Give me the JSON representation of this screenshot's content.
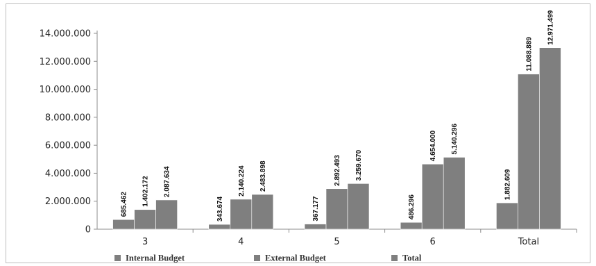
{
  "chart_data": {
    "type": "bar",
    "categories": [
      "3",
      "4",
      "5",
      "6",
      "Total"
    ],
    "series": [
      {
        "name": "Internal Budget",
        "values": [
          685462,
          343674,
          367177,
          486296,
          1882609
        ],
        "labels": [
          "685.462",
          "343.674",
          "367.177",
          "486.296",
          "1.882.609"
        ]
      },
      {
        "name": "External Budget",
        "values": [
          1402172,
          2140224,
          2892493,
          4654000,
          11088889
        ],
        "labels": [
          "1.402.172",
          "2.140.224",
          "2.892.493",
          "4.654.000",
          "11.088.889"
        ]
      },
      {
        "name": "Total",
        "values": [
          2087634,
          2483898,
          3259670,
          5140296,
          12971499
        ],
        "labels": [
          "2.087.634",
          "2.483.898",
          "3.259.670",
          "5.140.296",
          "12.971.499"
        ]
      }
    ],
    "yticks": [
      0,
      2000000,
      4000000,
      6000000,
      8000000,
      10000000,
      12000000,
      14000000
    ],
    "ytick_labels": [
      "0",
      "2.000.000",
      "4.000.000",
      "6.000.000",
      "8.000.000",
      "10.000.000",
      "12.000.000",
      "14.000.000"
    ],
    "ylim": [
      0,
      14000000
    ],
    "grid": false,
    "legend_position": "bottom",
    "title": "",
    "xlabel": "",
    "ylabel": "",
    "colors": [
      "#7f7f7f",
      "#7f7f7f",
      "#7f7f7f"
    ],
    "axis_color": "#8c8c8c"
  }
}
